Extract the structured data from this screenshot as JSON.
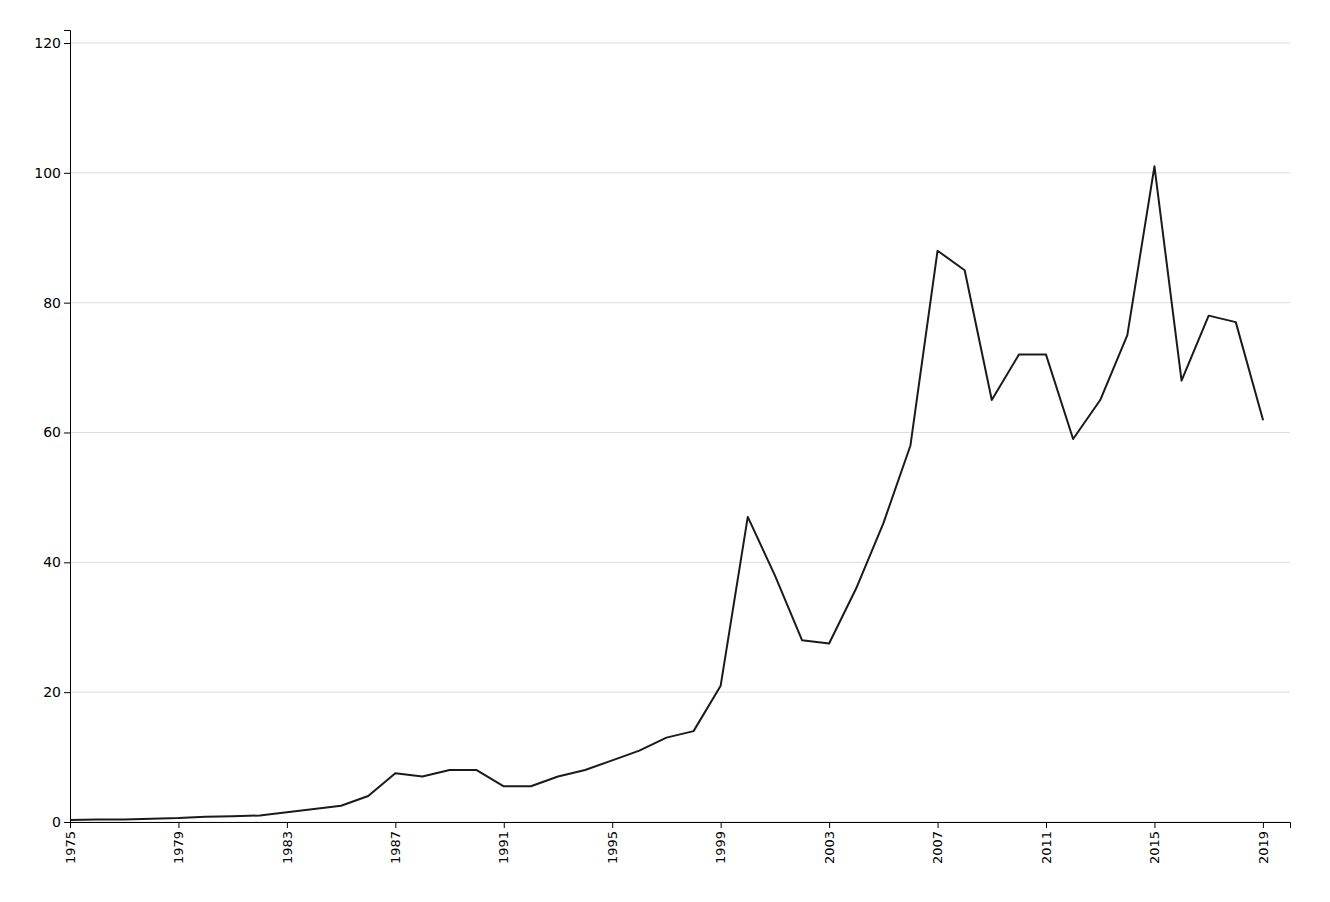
{
  "chart_data": {
    "type": "line",
    "x": [
      1975,
      1976,
      1977,
      1978,
      1979,
      1980,
      1981,
      1982,
      1983,
      1984,
      1985,
      1986,
      1987,
      1988,
      1989,
      1990,
      1991,
      1992,
      1993,
      1994,
      1995,
      1996,
      1997,
      1998,
      1999,
      2000,
      2001,
      2002,
      2003,
      2004,
      2005,
      2006,
      2007,
      2008,
      2009,
      2010,
      2011,
      2012,
      2013,
      2014,
      2015,
      2016,
      2017,
      2018,
      2019
    ],
    "values": [
      0.3,
      0.4,
      0.4,
      0.5,
      0.6,
      0.8,
      0.9,
      1.0,
      1.5,
      2.0,
      2.5,
      4.0,
      7.5,
      7.0,
      8.0,
      8.0,
      5.5,
      5.5,
      7.0,
      8.0,
      9.5,
      11.0,
      13.0,
      14.0,
      21.0,
      47.0,
      38.0,
      28.0,
      27.5,
      36.0,
      46.0,
      58.0,
      88.0,
      85.0,
      65.0,
      72.0,
      72.0,
      59.0,
      65.0,
      75.0,
      101.0,
      68.0,
      78.0,
      77.0,
      62.0
    ],
    "color": "#1a1a1a",
    "xlim": [
      1975,
      2020
    ],
    "ylim": [
      0,
      122
    ],
    "xticks": [
      1975,
      1979,
      1983,
      1987,
      1991,
      1995,
      1999,
      2003,
      2007,
      2011,
      2015,
      2019
    ],
    "yticks": [
      0,
      20,
      40,
      60,
      80,
      100,
      120
    ],
    "grid": true
  }
}
